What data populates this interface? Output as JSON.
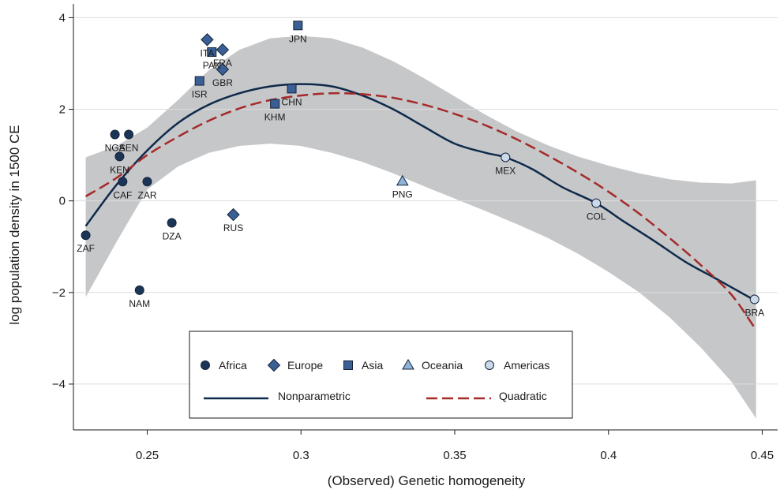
{
  "chart_data": {
    "type": "scatter",
    "title": "",
    "xlabel": "(Observed) Genetic homogeneity",
    "ylabel": "log population density in 1500 CE",
    "xlim": [
      0.226,
      0.455
    ],
    "ylim": [
      -5.0,
      4.3
    ],
    "x_ticks": [
      {
        "value": 0.25,
        "label": "0.25"
      },
      {
        "value": 0.3,
        "label": "0.3"
      },
      {
        "value": 0.35,
        "label": "0.35"
      },
      {
        "value": 0.4,
        "label": "0.4"
      },
      {
        "value": 0.45,
        "label": "0.45"
      }
    ],
    "y_ticks": [
      {
        "value": -4,
        "label": "−4"
      },
      {
        "value": -2,
        "label": "−2"
      },
      {
        "value": 0,
        "label": "0"
      },
      {
        "value": 2,
        "label": "2"
      },
      {
        "value": 4,
        "label": "4"
      }
    ],
    "grid": "horizontal",
    "legend_position": "bottom-center",
    "colors": {
      "marker_dark": "#1c3557",
      "marker_mid": "#3a5f95",
      "marker_light_tri": "#8eb4d8",
      "marker_light_circle": "#ccd9ea",
      "nonparametric_line": "#0e2a4a",
      "quadratic_line": "#a52a2a",
      "confidence_band": "#c6c7c9"
    },
    "series": [
      {
        "name": "Africa",
        "marker": "circle",
        "points": [
          {
            "label": "ZAF",
            "x": 0.23,
            "y": -0.75
          },
          {
            "label": "NGA",
            "x": 0.2395,
            "y": 1.45
          },
          {
            "label": "SEN",
            "x": 0.244,
            "y": 1.45
          },
          {
            "label": "KEN",
            "x": 0.241,
            "y": 0.97
          },
          {
            "label": "CAF",
            "x": 0.242,
            "y": 0.42
          },
          {
            "label": "ZAR",
            "x": 0.25,
            "y": 0.42
          },
          {
            "label": "DZA",
            "x": 0.258,
            "y": -0.48
          },
          {
            "label": "NAM",
            "x": 0.2475,
            "y": -1.95
          }
        ]
      },
      {
        "name": "Europe",
        "marker": "diamond",
        "points": [
          {
            "label": "ITA",
            "x": 0.2695,
            "y": 3.52
          },
          {
            "label": "FRA",
            "x": 0.2745,
            "y": 3.3
          },
          {
            "label": "GBR",
            "x": 0.2745,
            "y": 2.87
          },
          {
            "label": "RUS",
            "x": 0.278,
            "y": -0.3
          }
        ]
      },
      {
        "name": "Asia",
        "marker": "square",
        "points": [
          {
            "label": "JPN",
            "x": 0.299,
            "y": 3.83
          },
          {
            "label": "PAK",
            "x": 0.271,
            "y": 3.25
          },
          {
            "label": "ISR",
            "x": 0.267,
            "y": 2.62
          },
          {
            "label": "CHN",
            "x": 0.297,
            "y": 2.45
          },
          {
            "label": "KHM",
            "x": 0.2915,
            "y": 2.12
          }
        ]
      },
      {
        "name": "Oceania",
        "marker": "triangle",
        "points": [
          {
            "label": "PNG",
            "x": 0.333,
            "y": 0.43
          }
        ]
      },
      {
        "name": "Americas",
        "marker": "circle-light",
        "points": [
          {
            "label": "MEX",
            "x": 0.3665,
            "y": 0.95
          },
          {
            "label": "COL",
            "x": 0.396,
            "y": -0.05
          },
          {
            "label": "BRA",
            "x": 0.4475,
            "y": -2.15
          }
        ]
      }
    ],
    "lines": [
      {
        "name": "Nonparametric",
        "style": "solid",
        "points": [
          [
            0.23,
            -0.55
          ],
          [
            0.24,
            0.35
          ],
          [
            0.25,
            1.1
          ],
          [
            0.26,
            1.7
          ],
          [
            0.27,
            2.1
          ],
          [
            0.28,
            2.35
          ],
          [
            0.29,
            2.5
          ],
          [
            0.3,
            2.55
          ],
          [
            0.31,
            2.5
          ],
          [
            0.32,
            2.3
          ],
          [
            0.33,
            2.0
          ],
          [
            0.34,
            1.62
          ],
          [
            0.35,
            1.25
          ],
          [
            0.36,
            1.05
          ],
          [
            0.3665,
            0.95
          ],
          [
            0.375,
            0.7
          ],
          [
            0.385,
            0.3
          ],
          [
            0.396,
            -0.05
          ],
          [
            0.405,
            -0.45
          ],
          [
            0.415,
            -0.88
          ],
          [
            0.425,
            -1.33
          ],
          [
            0.435,
            -1.7
          ],
          [
            0.447,
            -2.15
          ]
        ]
      },
      {
        "name": "Quadratic",
        "style": "dashed",
        "points": [
          [
            0.23,
            0.1
          ],
          [
            0.24,
            0.5
          ],
          [
            0.25,
            1.0
          ],
          [
            0.26,
            1.4
          ],
          [
            0.27,
            1.75
          ],
          [
            0.28,
            2.02
          ],
          [
            0.29,
            2.2
          ],
          [
            0.3,
            2.3
          ],
          [
            0.31,
            2.35
          ],
          [
            0.32,
            2.33
          ],
          [
            0.33,
            2.25
          ],
          [
            0.34,
            2.1
          ],
          [
            0.35,
            1.9
          ],
          [
            0.36,
            1.65
          ],
          [
            0.37,
            1.35
          ],
          [
            0.38,
            1.0
          ],
          [
            0.39,
            0.62
          ],
          [
            0.4,
            0.2
          ],
          [
            0.41,
            -0.28
          ],
          [
            0.42,
            -0.82
          ],
          [
            0.43,
            -1.4
          ],
          [
            0.44,
            -2.05
          ],
          [
            0.448,
            -2.82
          ]
        ]
      }
    ],
    "confidence_band": {
      "x": [
        0.23,
        0.24,
        0.25,
        0.26,
        0.27,
        0.28,
        0.29,
        0.3,
        0.31,
        0.32,
        0.33,
        0.34,
        0.35,
        0.36,
        0.37,
        0.38,
        0.39,
        0.4,
        0.41,
        0.42,
        0.43,
        0.44,
        0.448
      ],
      "upper": [
        0.95,
        1.2,
        1.6,
        2.2,
        2.85,
        3.3,
        3.55,
        3.6,
        3.55,
        3.35,
        3.05,
        2.68,
        2.28,
        1.88,
        1.52,
        1.22,
        0.97,
        0.77,
        0.6,
        0.47,
        0.4,
        0.38,
        0.45
      ],
      "lower": [
        -2.1,
        -0.9,
        0.25,
        0.75,
        1.05,
        1.2,
        1.25,
        1.2,
        1.05,
        0.85,
        0.6,
        0.32,
        0.05,
        -0.22,
        -0.5,
        -0.8,
        -1.15,
        -1.55,
        -2.0,
        -2.55,
        -3.2,
        -3.95,
        -4.75
      ]
    }
  }
}
